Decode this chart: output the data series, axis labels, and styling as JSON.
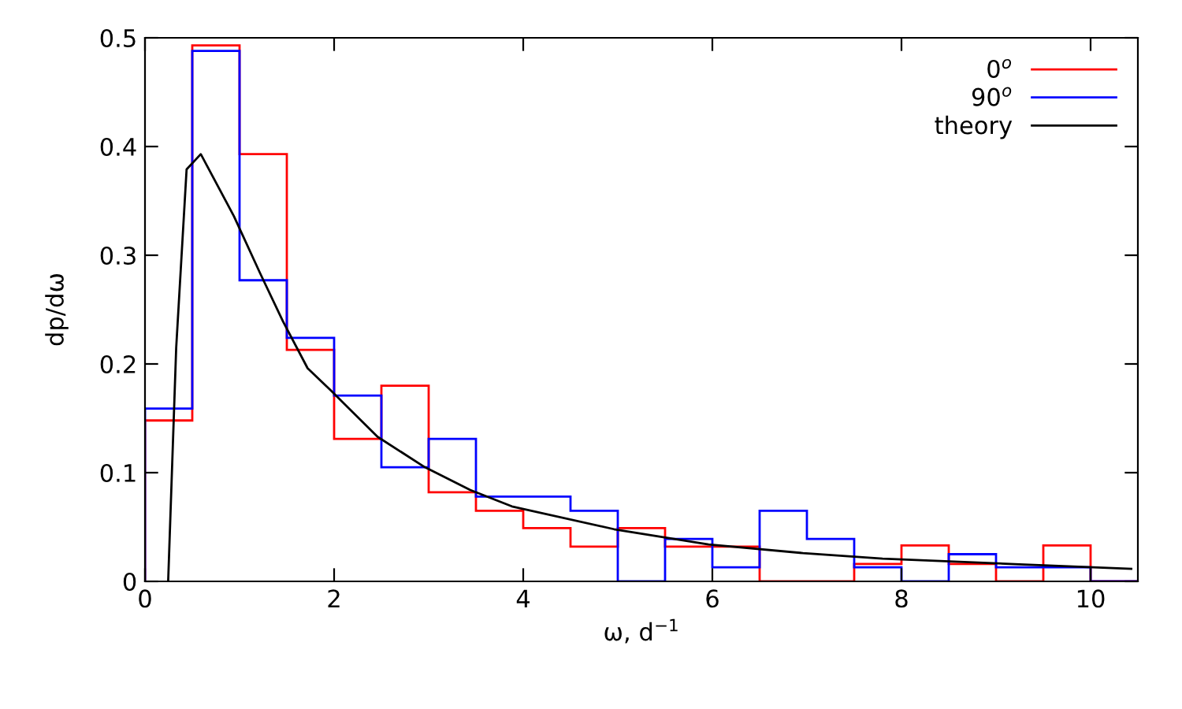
{
  "chart_data": {
    "type": "histogram",
    "xlabel": "ω, d$^{−1}$",
    "ylabel": "dp/dω",
    "xlim": [
      0,
      10.5
    ],
    "ylim": [
      0,
      0.5
    ],
    "xticks": [
      0,
      2,
      4,
      6,
      8,
      10
    ],
    "yticks": [
      0,
      0.1,
      0.2,
      0.3,
      0.4,
      0.5
    ],
    "grid": false,
    "legend": "top right",
    "bins": [
      0,
      0.5,
      1,
      1.5,
      2,
      2.5,
      3,
      3.5,
      4,
      4.5,
      5,
      5.5,
      6,
      6.5,
      7,
      7.5,
      8,
      8.5,
      9,
      9.5,
      10,
      10.5
    ],
    "series": [
      {
        "name": "0$^{o}$",
        "color": "#ff0000",
        "values": [
          0.148,
          0.493,
          0.393,
          0.213,
          0.131,
          0.18,
          0.082,
          0.065,
          0.049,
          0.032,
          0.049,
          0.032,
          0.032,
          0,
          0,
          0.016,
          0.033,
          0.016,
          0,
          0.033,
          0
        ]
      },
      {
        "name": "90$^{o}$",
        "color": "#0000ff",
        "values": [
          0.159,
          0.488,
          0.277,
          0.224,
          0.171,
          0.105,
          0.131,
          0.078,
          0.078,
          0.065,
          0,
          0.039,
          0.013,
          0.065,
          0.039,
          0.013,
          0,
          0.025,
          0.013,
          0.013,
          0
        ]
      },
      {
        "name": "theory",
        "color": "#000000",
        "type": "line",
        "x": [
          0.245,
          0.33,
          0.44,
          0.59,
          0.94,
          1.22,
          1.46,
          1.72,
          1.96,
          2.46,
          2.96,
          3.44,
          3.88,
          4.96,
          5.96,
          6.96,
          7.8,
          9.3,
          10.43
        ],
        "values": [
          0,
          0.215,
          0.379,
          0.393,
          0.336,
          0.283,
          0.239,
          0.196,
          0.176,
          0.133,
          0.105,
          0.084,
          0.069,
          0.048,
          0.034,
          0.026,
          0.021,
          0.0155,
          0.0115
        ]
      }
    ]
  }
}
